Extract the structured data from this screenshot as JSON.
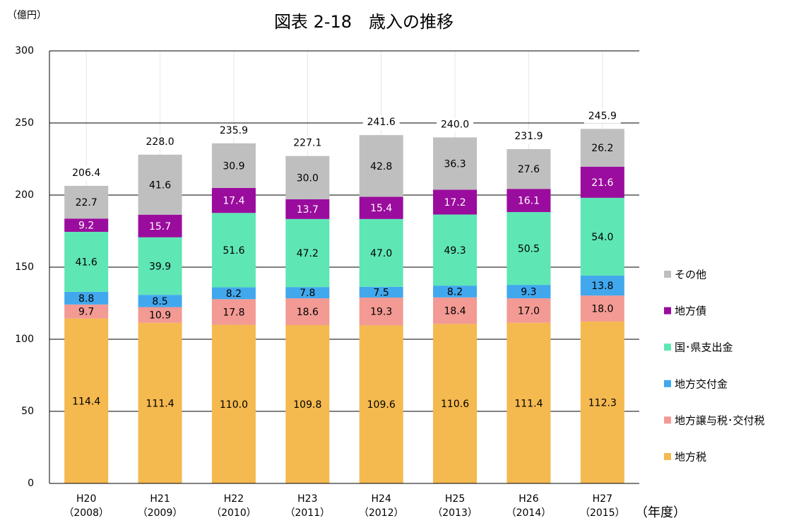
{
  "chart_data": {
    "type": "stacked_bar",
    "title": "図表 2-18　歳入の推移",
    "y_unit": "（億円）",
    "x_unit": "（年度）",
    "categories": [
      "H20\n（2008）",
      "H21\n（2009）",
      "H22\n（2010）",
      "H23\n（2011）",
      "H24\n（2012）",
      "H25\n（2013）",
      "H26\n（2014）",
      "H27\n（2015）"
    ],
    "series": [
      {
        "name": "地方税",
        "color": "#f4b94f",
        "label_color": "#000000",
        "values": [
          114.4,
          111.4,
          110.0,
          109.8,
          109.6,
          110.6,
          111.4,
          112.3
        ],
        "value_labels": [
          "114.4",
          "111.4",
          "110.0",
          "109.8",
          "109.6",
          "110.6",
          "111.4",
          "112.3"
        ]
      },
      {
        "name": "地方譲与税･交付税",
        "color": "#f29a93",
        "label_color": "#000000",
        "values": [
          9.7,
          10.9,
          17.8,
          18.6,
          19.3,
          18.4,
          17.0,
          18.0
        ],
        "value_labels": [
          "9.7",
          "10.9",
          "17.8",
          "18.6",
          "19.3",
          "18.4",
          "17.0",
          "18.0"
        ]
      },
      {
        "name": "地方交付金",
        "color": "#41a8ee",
        "label_color": "#000000",
        "values": [
          8.8,
          8.5,
          8.2,
          7.8,
          7.5,
          8.2,
          9.3,
          13.8
        ],
        "value_labels": [
          "8.8",
          "8.5",
          "8.2",
          "7.8",
          "7.5",
          "8.2",
          "9.3",
          "13.8"
        ]
      },
      {
        "name": "国･県支出金",
        "color": "#5fe6b5",
        "label_color": "#000000",
        "values": [
          41.6,
          39.9,
          51.6,
          47.2,
          47.0,
          49.3,
          50.5,
          54.0
        ],
        "value_labels": [
          "41.6",
          "39.9",
          "51.6",
          "47.2",
          "47.0",
          "49.3",
          "50.5",
          "54.0"
        ]
      },
      {
        "name": "地方債",
        "color": "#9a0c9d",
        "label_color": "#ffffff",
        "values": [
          9.2,
          15.7,
          17.4,
          13.7,
          15.4,
          17.2,
          16.1,
          21.6
        ],
        "value_labels": [
          "9.2",
          "15.7",
          "17.4",
          "13.7",
          "15.4",
          "17.2",
          "16.1",
          "21.6"
        ]
      },
      {
        "name": "その他",
        "color": "#bfbfbf",
        "label_color": "#000000",
        "values": [
          22.7,
          41.6,
          30.9,
          30.0,
          42.8,
          36.3,
          27.6,
          26.2
        ],
        "value_labels": [
          "22.7",
          "41.6",
          "30.9",
          "30.0",
          "42.8",
          "36.3",
          "27.6",
          "26.2"
        ]
      }
    ],
    "totals": [
      206.4,
      228.0,
      235.9,
      227.1,
      241.6,
      240.0,
      231.9,
      245.9
    ],
    "total_labels": [
      "206.4",
      "228.0",
      "235.9",
      "227.1",
      "241.6",
      "240.0",
      "231.9",
      "245.9"
    ],
    "ylim": [
      0,
      300
    ],
    "yticks": [
      0,
      50,
      100,
      150,
      200,
      250,
      300
    ],
    "grid": true
  }
}
